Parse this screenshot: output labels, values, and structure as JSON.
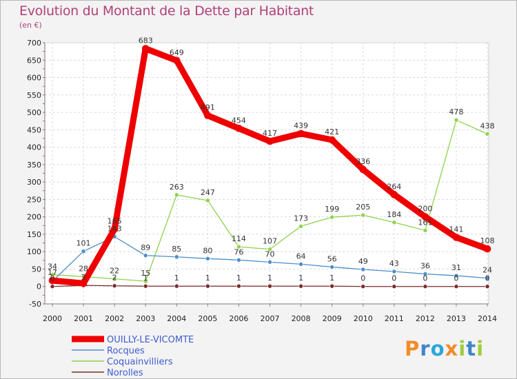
{
  "title": "Evolution du Montant de la Dette par Habitant",
  "unit_label": "(en €)",
  "logo": {
    "text": "Proxiti",
    "colors": [
      "#f28c28",
      "#3e86c9",
      "#2aa7d9",
      "#f28c28",
      "#9ccd3c",
      "#3e86c9",
      "#9ccd3c"
    ]
  },
  "chart_data": {
    "type": "line",
    "title": "Evolution du Montant de la Dette par Habitant",
    "ylabel": "(en €)",
    "xlabel": "",
    "x": [
      "2000",
      "2001",
      "2002",
      "2003",
      "2004",
      "2005",
      "2006",
      "2007",
      "2008",
      "2009",
      "2010",
      "2011",
      "2012",
      "2013",
      "2014"
    ],
    "ylim": [
      -50,
      700
    ],
    "yticks": [
      "-50",
      "0",
      "50",
      "100",
      "150",
      "200",
      "250",
      "300",
      "350",
      "400",
      "450",
      "500",
      "550",
      "600",
      "650",
      "700"
    ],
    "grid": true,
    "legend_position": "bottom-left",
    "series": [
      {
        "name": "OUILLY-LE-VICOMTE",
        "color": "#ee0000",
        "values": [
          17,
          9,
          165,
          683,
          649,
          491,
          454,
          417,
          439,
          421,
          336,
          264,
          200,
          141,
          108
        ],
        "labels": [
          "17",
          "",
          "165",
          "683",
          "649",
          "491",
          "454",
          "417",
          "439",
          "421",
          "336",
          "264",
          "200",
          "141",
          "108"
        ]
      },
      {
        "name": "Rocques",
        "color": "#4d8ec9",
        "values": [
          15,
          101,
          143,
          89,
          85,
          80,
          76,
          70,
          64,
          56,
          49,
          43,
          36,
          31,
          24
        ],
        "labels": [
          "",
          "101",
          "143",
          "89",
          "85",
          "80",
          "76",
          "70",
          "64",
          "56",
          "49",
          "43",
          "36",
          "31",
          "24"
        ]
      },
      {
        "name": "Coquainvilliers",
        "color": "#8ed24c",
        "values": [
          34,
          28,
          22,
          15,
          263,
          247,
          114,
          107,
          173,
          199,
          205,
          184,
          161,
          478,
          438
        ],
        "labels": [
          "34",
          "28",
          "22",
          "15",
          "263",
          "247",
          "114",
          "107",
          "173",
          "199",
          "205",
          "184",
          "161",
          "478",
          "438"
        ]
      },
      {
        "name": "Norolles",
        "color": "#7a2a2a",
        "values": [
          0,
          3,
          2,
          1,
          1,
          1,
          1,
          1,
          1,
          1,
          0,
          0,
          0,
          0,
          0
        ],
        "labels": [
          "0",
          "3",
          "2",
          "1",
          "1",
          "1",
          "1",
          "1",
          "1",
          "1",
          "0",
          "0",
          "0",
          "0",
          "0"
        ]
      }
    ]
  }
}
